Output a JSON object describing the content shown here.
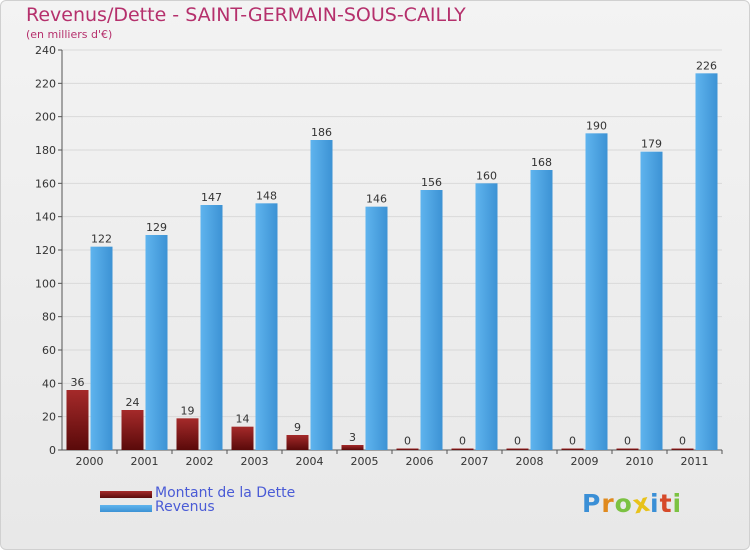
{
  "header": {
    "title": "Revenus/Dette - SAINT-GERMAIN-SOUS-CAILLY",
    "subtitle": "(en milliers d'€)"
  },
  "colors": {
    "debt": "#7a1414",
    "revenue": "#4aa0e0",
    "title": "#b5306c",
    "legend_text": "#4a5bd6"
  },
  "chart_data": {
    "type": "bar",
    "title": "Revenus/Dette - SAINT-GERMAIN-SOUS-CAILLY",
    "subtitle": "(en milliers d'€)",
    "categories": [
      "2000",
      "2001",
      "2002",
      "2003",
      "2004",
      "2005",
      "2006",
      "2007",
      "2008",
      "2009",
      "2010",
      "2011"
    ],
    "series": [
      {
        "name": "Montant de la Dette",
        "values": [
          36,
          24,
          19,
          14,
          9,
          3,
          0,
          0,
          0,
          0,
          0,
          0
        ]
      },
      {
        "name": "Revenus",
        "values": [
          122,
          129,
          147,
          148,
          186,
          146,
          156,
          160,
          168,
          190,
          179,
          226
        ]
      }
    ],
    "ylim": [
      0,
      240
    ],
    "yticks": [
      0,
      20,
      40,
      60,
      80,
      100,
      120,
      140,
      160,
      180,
      200,
      220,
      240
    ],
    "grid": true,
    "legend_position": "bottom-left"
  },
  "legend": {
    "items": [
      {
        "label": "Montant de la Dette"
      },
      {
        "label": "Revenus"
      }
    ]
  },
  "logo": {
    "text": "Proxiti",
    "letters": [
      {
        "ch": "P",
        "color": "#3a8fd6"
      },
      {
        "ch": "r",
        "color": "#e08a1e"
      },
      {
        "ch": "o",
        "color": "#7cc242"
      },
      {
        "ch": "x",
        "color": "#e8c21a"
      },
      {
        "ch": "i",
        "color": "#3a8fd6"
      },
      {
        "ch": "t",
        "color": "#d64a2a"
      },
      {
        "ch": "i",
        "color": "#7cc242"
      }
    ]
  }
}
